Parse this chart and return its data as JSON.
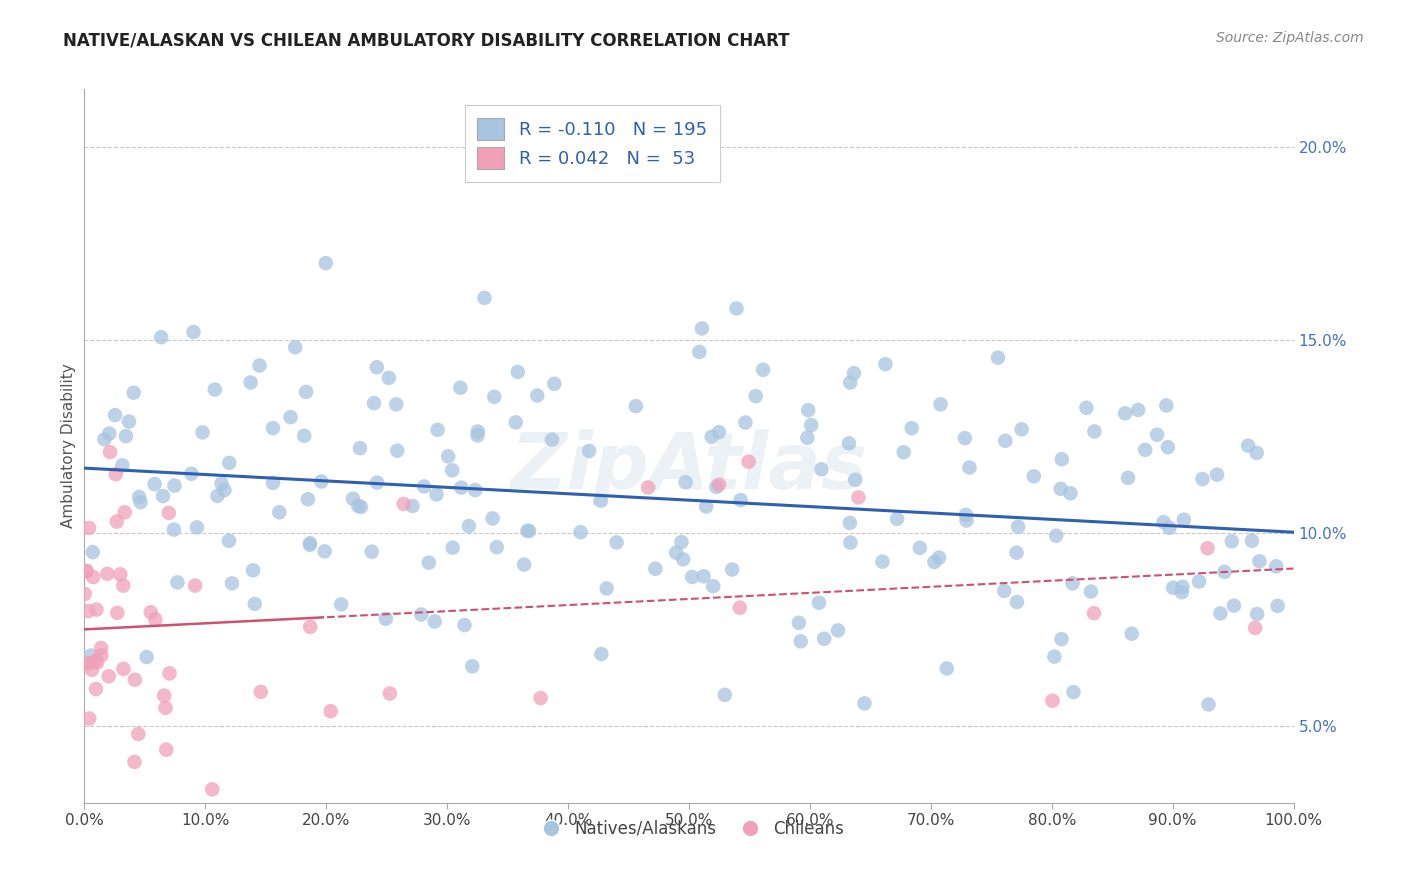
{
  "title": "NATIVE/ALASKAN VS CHILEAN AMBULATORY DISABILITY CORRELATION CHART",
  "source": "Source: ZipAtlas.com",
  "xlabel": "",
  "ylabel": "Ambulatory Disability",
  "xlim": [
    0,
    100
  ],
  "ylim": [
    3.0,
    21.5
  ],
  "yticks": [
    5.0,
    10.0,
    15.0,
    20.0
  ],
  "xticks": [
    0,
    10,
    20,
    30,
    40,
    50,
    60,
    70,
    80,
    90,
    100
  ],
  "blue_R": -0.11,
  "blue_N": 195,
  "pink_R": 0.042,
  "pink_N": 53,
  "blue_color": "#a8c4e0",
  "blue_line_color": "#3060b0",
  "pink_color": "#f0a0b8",
  "pink_line_color": "#d05070",
  "legend_blue_label": "Natives/Alaskans",
  "legend_pink_label": "Chileans",
  "watermark": "ZipAtlas",
  "background_color": "#ffffff",
  "grid_color": "#bbbbbb",
  "title_color": "#222222",
  "blue_seed": 42,
  "pink_seed": 99
}
